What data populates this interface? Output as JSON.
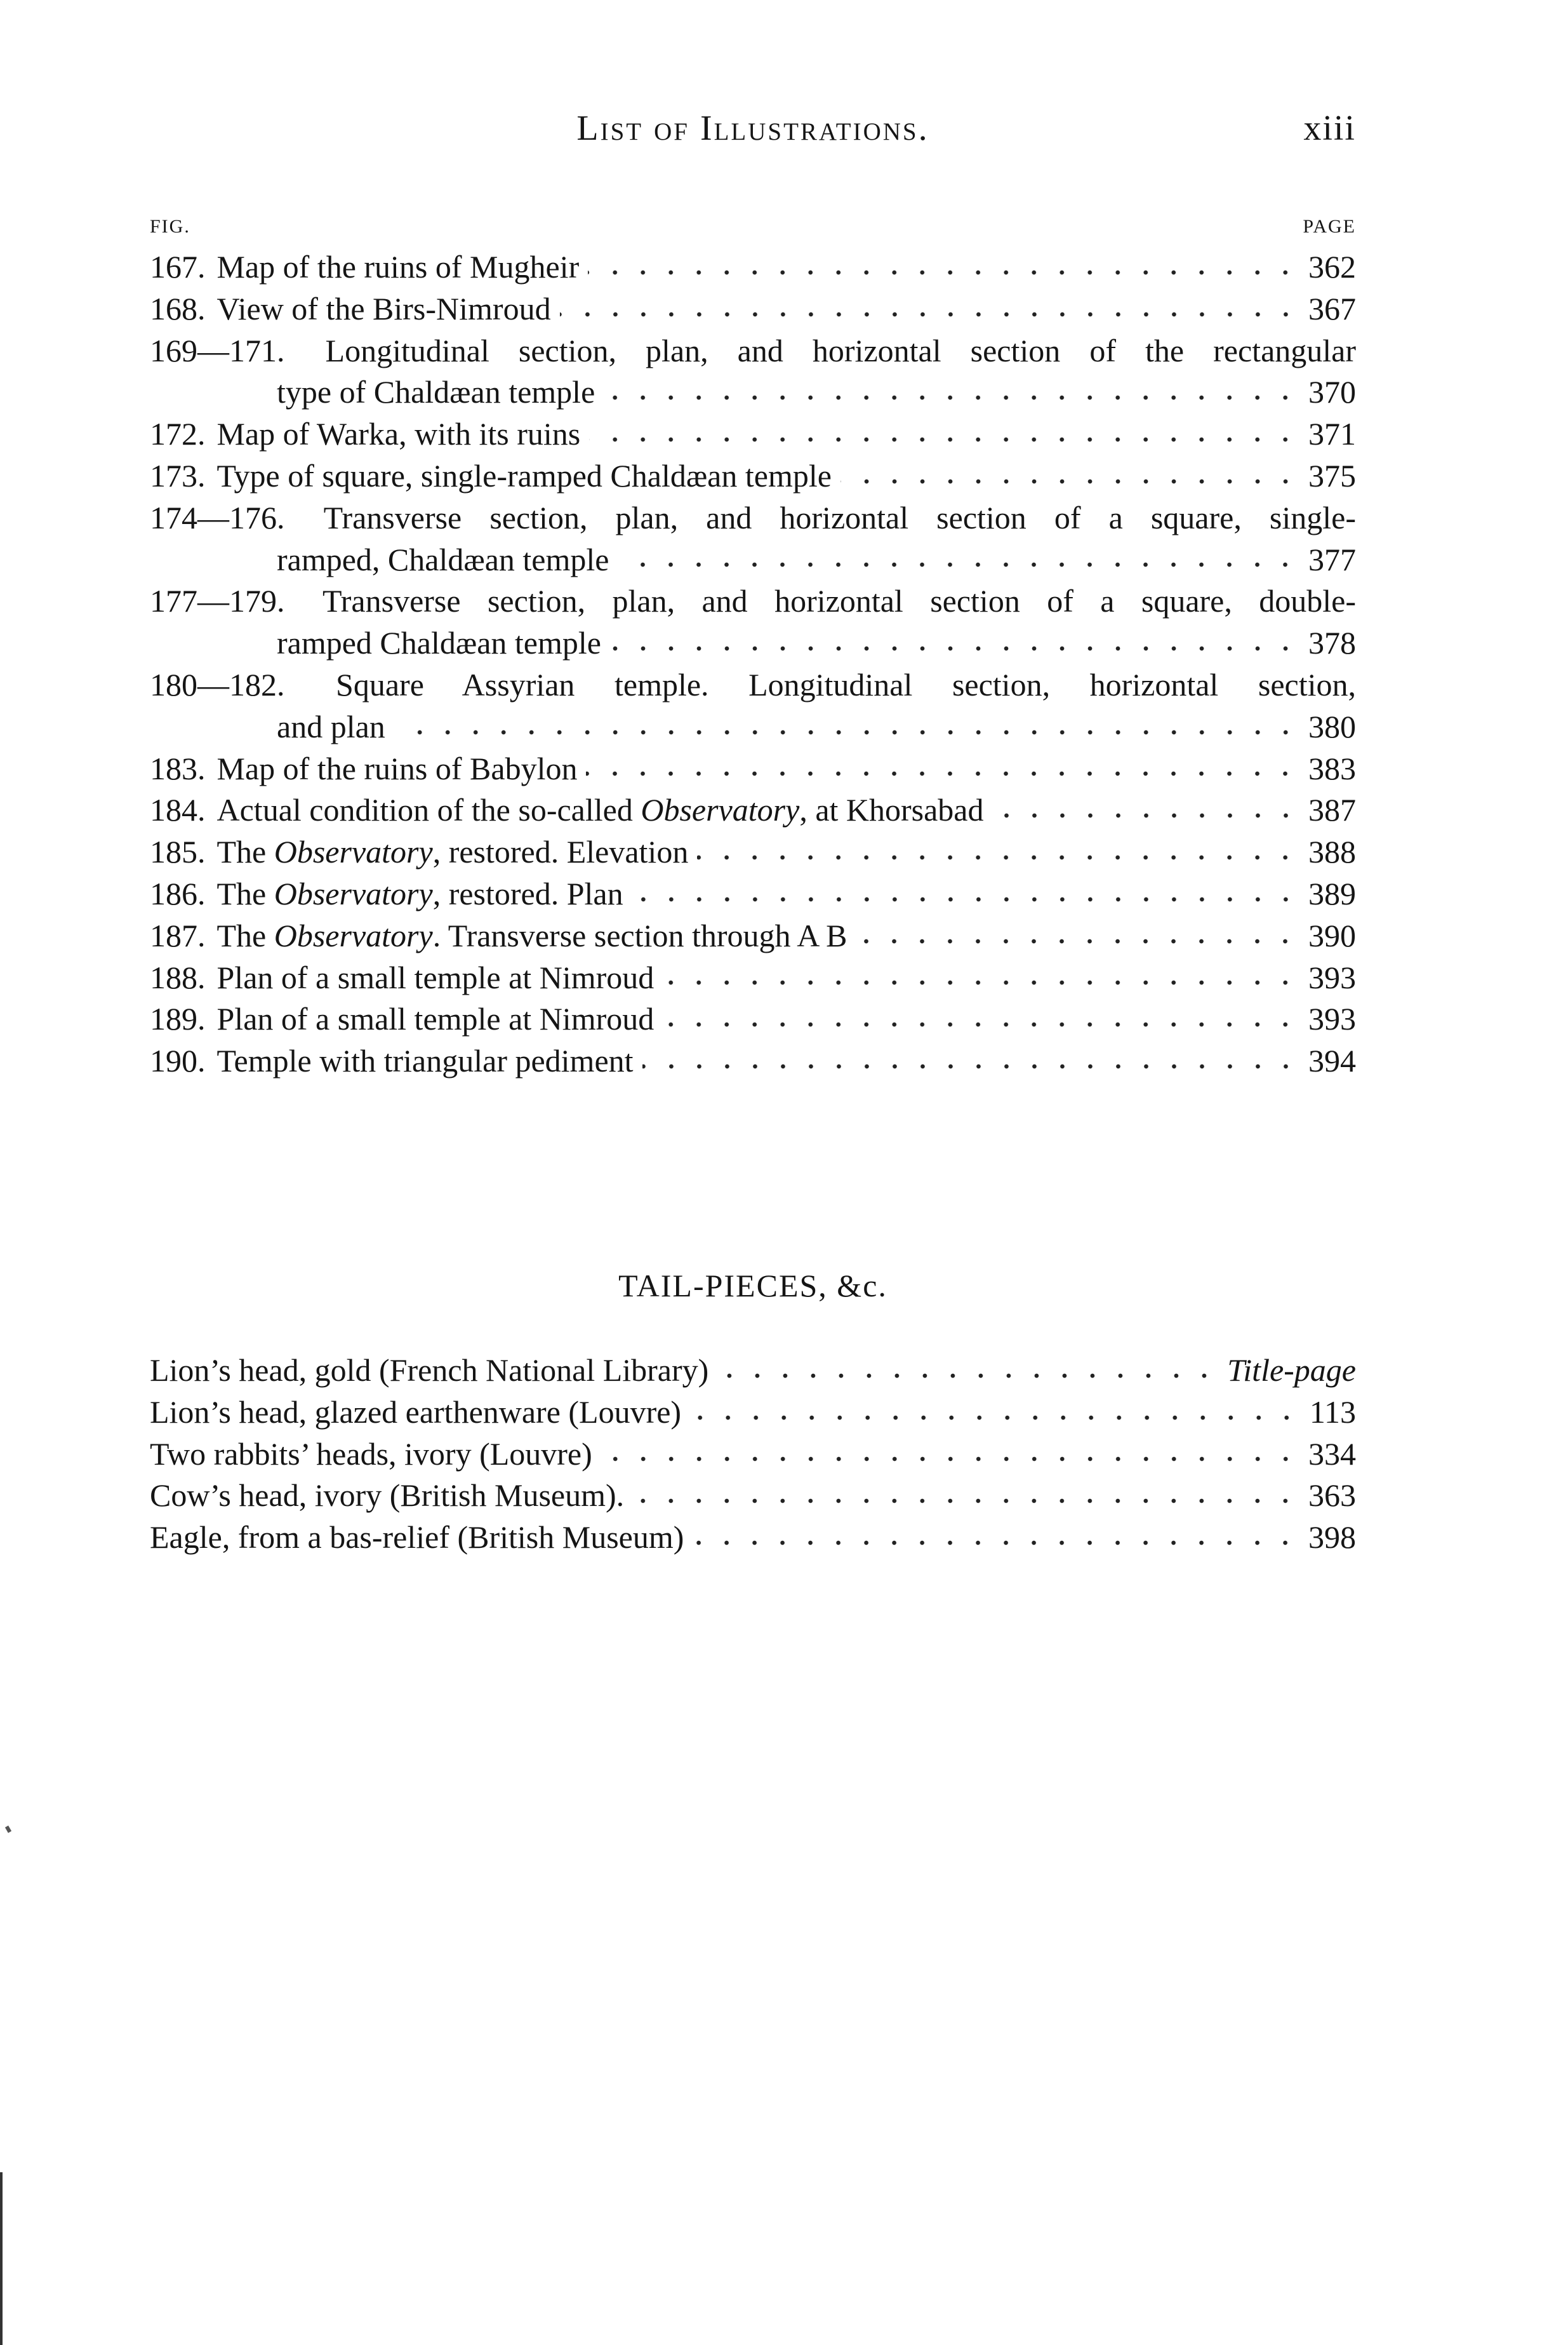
{
  "header": {
    "title": "List of Illustrations.",
    "folio": "xiii"
  },
  "figures": {
    "col_fig": "FIG.",
    "col_page": "PAGE",
    "entries": [
      {
        "num": "167.",
        "lines": [
          [
            {
              "text": "Map of the ruins of Mugheir"
            }
          ]
        ],
        "page": "362"
      },
      {
        "num": "168.",
        "lines": [
          [
            {
              "text": "View of the Birs-Nimroud"
            }
          ]
        ],
        "page": "367"
      },
      {
        "num": "169—171.",
        "lines": [
          [
            {
              "text": "Longitudinal section, plan, and horizontal section of the rectangular"
            }
          ],
          [
            {
              "text": "type of Chaldæan temple"
            }
          ]
        ],
        "page": "370"
      },
      {
        "num": "172.",
        "lines": [
          [
            {
              "text": "Map of Warka, with its ruins"
            }
          ]
        ],
        "page": "371"
      },
      {
        "num": "173.",
        "lines": [
          [
            {
              "text": "Type of square, single-ramped Chaldæan temple"
            }
          ]
        ],
        "page": "375"
      },
      {
        "num": "174—176.",
        "lines": [
          [
            {
              "text": "Transverse section, plan, and horizontal section of a square, single-"
            }
          ],
          [
            {
              "text": "ramped, Chaldæan temple"
            }
          ]
        ],
        "page": "377"
      },
      {
        "num": "177—179.",
        "lines": [
          [
            {
              "text": "Transverse section, plan, and horizontal section of a square, double-"
            }
          ],
          [
            {
              "text": "ramped Chaldæan temple"
            }
          ]
        ],
        "page": "378"
      },
      {
        "num": "180—182.",
        "lines": [
          [
            {
              "text": "Square Assyrian temple.  Longitudinal section, horizontal section,"
            }
          ],
          [
            {
              "text": "and plan"
            }
          ]
        ],
        "page": "380"
      },
      {
        "num": "183.",
        "lines": [
          [
            {
              "text": "Map of the ruins of Babylon"
            }
          ]
        ],
        "page": "383"
      },
      {
        "num": "184.",
        "lines": [
          [
            {
              "text": "Actual condition of the so-called "
            },
            {
              "text": "Observatory",
              "italic": true
            },
            {
              "text": ", at Khorsabad"
            }
          ]
        ],
        "page": "387"
      },
      {
        "num": "185.",
        "lines": [
          [
            {
              "text": "The "
            },
            {
              "text": "Observatory",
              "italic": true
            },
            {
              "text": ", restored.  Elevation"
            }
          ]
        ],
        "page": "388"
      },
      {
        "num": "186.",
        "lines": [
          [
            {
              "text": "The "
            },
            {
              "text": "Observatory",
              "italic": true
            },
            {
              "text": ", restored.  Plan"
            }
          ]
        ],
        "page": "389"
      },
      {
        "num": "187.",
        "lines": [
          [
            {
              "text": "The "
            },
            {
              "text": "Observatory",
              "italic": true
            },
            {
              "text": ".  Transverse section through A B"
            }
          ]
        ],
        "page": "390"
      },
      {
        "num": "188.",
        "lines": [
          [
            {
              "text": "Plan of a small temple at Nimroud"
            }
          ]
        ],
        "page": "393"
      },
      {
        "num": "189.",
        "lines": [
          [
            {
              "text": "Plan of a small temple at Nimroud"
            }
          ]
        ],
        "page": "393"
      },
      {
        "num": "190.",
        "lines": [
          [
            {
              "text": "Temple with triangular pediment"
            }
          ]
        ],
        "page": "394"
      }
    ]
  },
  "tailpieces": {
    "title": "TAIL-PIECES, &c.",
    "entries": [
      {
        "num": "",
        "lines": [
          [
            {
              "text": "Lion’s head, gold (French National Library)"
            }
          ]
        ],
        "page": "Title-page",
        "page_italic": true
      },
      {
        "num": "",
        "lines": [
          [
            {
              "text": "Lion’s head, glazed earthenware (Louvre)"
            }
          ]
        ],
        "page": "113"
      },
      {
        "num": "",
        "lines": [
          [
            {
              "text": "Two rabbits’ heads, ivory (Louvre)"
            }
          ]
        ],
        "page": "334"
      },
      {
        "num": "",
        "lines": [
          [
            {
              "text": "Cow’s head, ivory (British Museum)."
            }
          ]
        ],
        "page": "363"
      },
      {
        "num": "",
        "lines": [
          [
            {
              "text": "Eagle, from a bas-relief (British Museum)"
            }
          ]
        ],
        "page": "398"
      }
    ]
  }
}
